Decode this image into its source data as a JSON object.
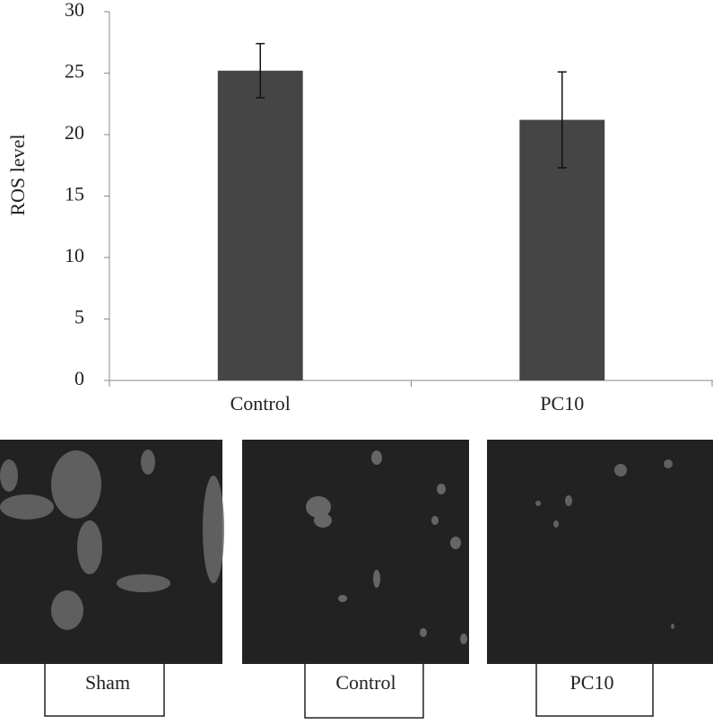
{
  "chart_data": {
    "type": "bar",
    "y_label": "ROS level",
    "categories": [
      "Control",
      "PC10"
    ],
    "values": [
      25.2,
      21.2
    ],
    "errors": [
      2.2,
      3.9
    ],
    "color": "#454545",
    "ylim": [
      0,
      30
    ],
    "yticks": [
      0,
      5,
      10,
      15,
      20,
      25,
      30
    ],
    "grid": false
  },
  "image_labels": [
    "Sham",
    "Control",
    "PC10"
  ]
}
